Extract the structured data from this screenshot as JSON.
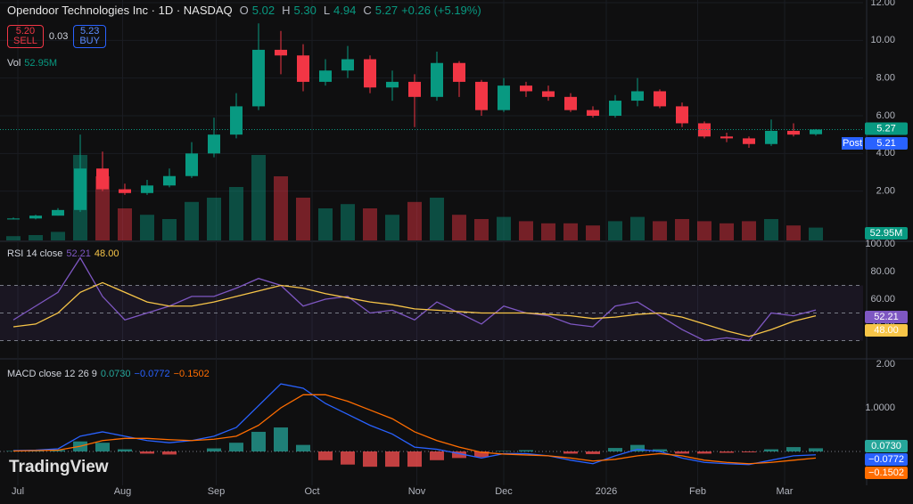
{
  "chart_data": {
    "type": "candlestick",
    "title": "Opendoor Technologies Inc · 1D · NASDAQ",
    "ohlc_labels": {
      "o": "O",
      "open": "5.02",
      "h": "H",
      "high": "5.30",
      "l": "L",
      "low": "4.94",
      "c": "C",
      "close": "5.27",
      "change": "+0.26 (+5.19%)"
    },
    "trade": {
      "sell_price": "5.20",
      "sell": "SELL",
      "spread": "0.03",
      "buy_price": "5.23",
      "buy": "BUY"
    },
    "volume_label": "Vol",
    "volume_value": "52.95M",
    "last_price": "5.27",
    "post_label": "Post",
    "post_price": "5.21",
    "logo": "TradingView",
    "up_color": "#089981",
    "down_color": "#f23645",
    "ylim": [
      0,
      12
    ],
    "yticks": [
      {
        "value": 12,
        "label": "12.00"
      },
      {
        "value": 10,
        "label": "10.00"
      },
      {
        "value": 8,
        "label": "8.00"
      },
      {
        "value": 6,
        "label": "6.00"
      },
      {
        "value": 4,
        "label": "4.00"
      },
      {
        "value": 2,
        "label": "2.00"
      }
    ],
    "xticks": [
      {
        "value": 0.2,
        "label": "Jul"
      },
      {
        "value": 4.9,
        "label": "Aug"
      },
      {
        "value": 9.1,
        "label": "Sep"
      },
      {
        "value": 13.4,
        "label": "Oct"
      },
      {
        "value": 18.1,
        "label": "Nov"
      },
      {
        "value": 22,
        "label": "Dec"
      },
      {
        "value": 26.6,
        "label": "2026"
      },
      {
        "value": 30.7,
        "label": "Feb"
      },
      {
        "value": 34.6,
        "label": "Mar"
      }
    ],
    "open": [
      0.5,
      0.55,
      0.7,
      1.0,
      3.2,
      2.1,
      1.9,
      2.3,
      2.8,
      4.0,
      5.0,
      6.5,
      9.5,
      9.2,
      7.8,
      8.4,
      9.0,
      7.5,
      7.8,
      7.0,
      8.8,
      7.8,
      6.3,
      7.6,
      7.3,
      7.0,
      6.3,
      6.0,
      6.8,
      7.3,
      6.5,
      5.6,
      4.9,
      4.8,
      4.5,
      5.2,
      5.02
    ],
    "high": [
      0.6,
      0.75,
      1.1,
      5.0,
      4.1,
      2.4,
      2.6,
      3.2,
      4.6,
      5.9,
      7.2,
      10.9,
      10.5,
      9.8,
      9.0,
      9.7,
      9.2,
      8.4,
      8.2,
      9.4,
      8.9,
      7.9,
      8.0,
      7.8,
      7.6,
      7.2,
      6.5,
      7.1,
      8.0,
      7.4,
      6.7,
      5.7,
      5.1,
      4.9,
      5.8,
      5.6,
      5.3
    ],
    "low": [
      0.5,
      0.5,
      0.7,
      0.9,
      2.0,
      1.8,
      1.8,
      2.2,
      2.7,
      3.8,
      4.8,
      6.3,
      8.2,
      7.3,
      7.6,
      8.0,
      7.2,
      6.8,
      5.4,
      6.8,
      7.0,
      6.0,
      6.2,
      7.0,
      6.8,
      6.2,
      5.9,
      5.9,
      6.5,
      6.4,
      5.4,
      4.8,
      4.6,
      4.3,
      4.4,
      4.9,
      4.94
    ],
    "close": [
      0.55,
      0.7,
      1.0,
      3.2,
      2.1,
      1.9,
      2.3,
      2.8,
      4.0,
      5.0,
      6.5,
      9.5,
      9.2,
      7.8,
      8.4,
      9.0,
      7.5,
      7.8,
      7.0,
      8.8,
      7.8,
      6.3,
      7.6,
      7.3,
      7.0,
      6.3,
      6.0,
      6.8,
      7.3,
      6.5,
      5.6,
      4.9,
      4.8,
      4.5,
      5.2,
      5.0,
      5.27
    ],
    "volume": [
      20,
      25,
      40,
      400,
      300,
      150,
      120,
      100,
      180,
      200,
      250,
      400,
      300,
      200,
      150,
      170,
      150,
      120,
      180,
      200,
      120,
      100,
      110,
      90,
      80,
      80,
      70,
      90,
      110,
      90,
      100,
      90,
      80,
      90,
      100,
      70,
      60
    ],
    "volume_ylim": [
      0,
      500
    ],
    "rsi": {
      "label": "RSI 14 close",
      "value": "52.21",
      "ma_value": "48.00",
      "color": "#7e57c2",
      "ma_color": "#f7c548",
      "ylim": [
        20,
        100
      ],
      "yticks": [
        {
          "value": 100,
          "label": "100.00"
        },
        {
          "value": 80,
          "label": "80.00"
        },
        {
          "value": 60,
          "label": "60.00"
        },
        {
          "value": 40,
          "label": "40.00"
        }
      ],
      "bands": [
        70,
        50,
        30
      ],
      "values": [
        45,
        55,
        65,
        90,
        62,
        45,
        50,
        55,
        62,
        62,
        68,
        75,
        70,
        55,
        60,
        62,
        50,
        52,
        45,
        58,
        50,
        42,
        55,
        50,
        48,
        42,
        40,
        55,
        58,
        48,
        38,
        30,
        32,
        30,
        50,
        48,
        52.21
      ],
      "ma": [
        40,
        42,
        50,
        65,
        72,
        65,
        58,
        55,
        55,
        58,
        62,
        66,
        70,
        68,
        64,
        61,
        58,
        56,
        53,
        52,
        51,
        50,
        50,
        50,
        49,
        48,
        46,
        47,
        49,
        50,
        47,
        42,
        37,
        33,
        38,
        44,
        48
      ]
    },
    "macd": {
      "label": "MACD close 12 26 9",
      "hist_value": "0.0730",
      "macd_value": "−0.0772",
      "signal_value": "−0.1502",
      "macd_color": "#2962ff",
      "signal_color": "#ff6d00",
      "hist_up": "#26a69a",
      "hist_down": "#ff5252",
      "ylim": [
        -0.3,
        2.0
      ],
      "yticks": [
        {
          "value": 2,
          "label": "2.00"
        },
        {
          "value": 1,
          "label": "1.0000"
        }
      ],
      "macd": [
        0.02,
        0.03,
        0.06,
        0.35,
        0.45,
        0.35,
        0.25,
        0.2,
        0.25,
        0.35,
        0.55,
        1.05,
        1.55,
        1.45,
        1.1,
        0.85,
        0.6,
        0.4,
        0.1,
        0.05,
        -0.05,
        -0.15,
        -0.05,
        -0.05,
        -0.1,
        -0.2,
        -0.28,
        -0.1,
        0.05,
        0,
        -0.15,
        -0.25,
        -0.28,
        -0.3,
        -0.2,
        -0.1,
        -0.0772
      ],
      "signal": [
        0.01,
        0.02,
        0.03,
        0.12,
        0.25,
        0.3,
        0.3,
        0.27,
        0.25,
        0.28,
        0.35,
        0.6,
        1.0,
        1.3,
        1.3,
        1.15,
        0.95,
        0.75,
        0.45,
        0.25,
        0.1,
        -0.02,
        -0.06,
        -0.08,
        -0.1,
        -0.15,
        -0.22,
        -0.18,
        -0.1,
        -0.05,
        -0.1,
        -0.2,
        -0.25,
        -0.28,
        -0.25,
        -0.2,
        -0.1502
      ],
      "hist": [
        0.01,
        0.01,
        0.03,
        0.23,
        0.2,
        0.05,
        -0.05,
        -0.07,
        0,
        0.07,
        0.2,
        0.45,
        0.55,
        0.15,
        -0.2,
        -0.3,
        -0.35,
        -0.35,
        -0.35,
        -0.2,
        -0.15,
        -0.13,
        0.01,
        0.03,
        0,
        -0.05,
        -0.06,
        0.08,
        0.15,
        0.05,
        -0.05,
        -0.05,
        -0.03,
        -0.02,
        0.05,
        0.1,
        0.073
      ]
    }
  }
}
